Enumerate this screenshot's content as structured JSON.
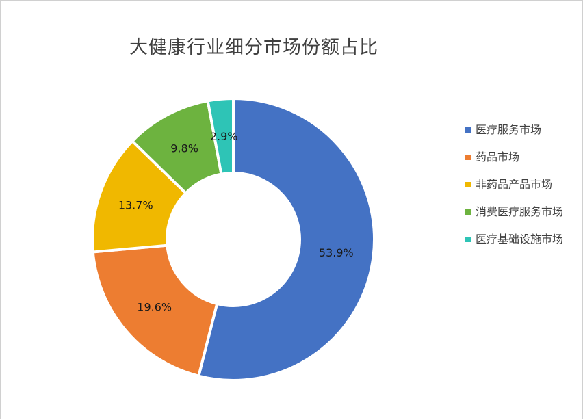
{
  "chart_data": {
    "type": "pie",
    "variant": "doughnut",
    "title": "大健康行业细分市场份额占比",
    "categories": [
      "医疗服务市场",
      "药品市场",
      "非药品产品市场",
      "消费医疗服务市场",
      "医疗基础设施市场"
    ],
    "values": [
      53.9,
      19.6,
      13.7,
      9.8,
      2.9
    ],
    "data_labels": [
      "53.9%",
      "19.6%",
      "13.7%",
      "9.8%",
      "2.9%"
    ],
    "colors": [
      "#4472C4",
      "#ED7D31",
      "#F0B800",
      "#6DB33F",
      "#2EC4B6"
    ],
    "legend_position": "right"
  }
}
